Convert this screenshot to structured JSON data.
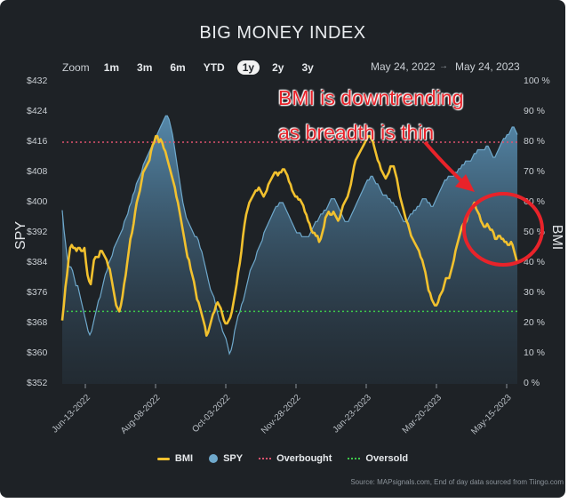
{
  "title": "BIG MONEY INDEX",
  "zoom": {
    "label": "Zoom",
    "buttons": [
      "1m",
      "3m",
      "6m",
      "YTD",
      "1y",
      "2y",
      "3y"
    ],
    "selected": "1y"
  },
  "date_range": {
    "from": "May 24, 2022",
    "to": "May 24, 2023"
  },
  "annotation": {
    "line1": "BMI is downtrending",
    "line2": "as breadth is thin",
    "color": "#e8232a"
  },
  "source": "Source: MAPsignals.com, End of day data sourced from Tiingo.com",
  "chart_data": {
    "type": "line",
    "title": "BIG MONEY INDEX",
    "y_left": {
      "label": "SPY",
      "ticks": [
        "$432",
        "$424",
        "$416",
        "$408",
        "$400",
        "$392",
        "$384",
        "$376",
        "$368",
        "$360",
        "$352"
      ],
      "range": [
        352,
        432
      ]
    },
    "y_right": {
      "label": "BMI",
      "ticks": [
        "100 %",
        "90 %",
        "80 %",
        "70 %",
        "60 %",
        "50 %",
        "40 %",
        "30 %",
        "20 %",
        "10 %",
        "0 %"
      ],
      "range": [
        0,
        100
      ]
    },
    "x_ticks": [
      "Jun-13-2022",
      "Aug-08-2022",
      "Oct-03-2022",
      "Nov-28-2022",
      "Jan-23-2023",
      "Mar-20-2023",
      "May-15-2023"
    ],
    "series": [
      {
        "name": "BMI",
        "axis": "right",
        "color": "#f2c12e",
        "values": [
          21,
          26,
          32,
          36,
          41,
          45,
          46,
          45,
          45,
          44,
          45,
          45,
          44,
          44,
          45,
          40,
          36,
          34,
          33,
          37,
          41,
          42,
          42,
          42,
          44,
          44,
          43,
          42,
          41,
          39,
          38,
          35,
          32,
          29,
          26,
          25,
          24,
          26,
          29,
          33,
          36,
          40,
          44,
          48,
          50,
          53,
          57,
          60,
          62,
          64,
          67,
          70,
          71,
          72,
          73,
          74,
          77,
          79,
          80,
          82,
          82,
          80,
          81,
          80,
          78,
          77,
          75,
          73,
          71,
          69,
          67,
          65,
          62,
          60,
          57,
          54,
          51,
          48,
          45,
          42,
          41,
          38,
          36,
          34,
          31,
          28,
          27,
          25,
          23,
          21,
          19,
          16,
          17,
          19,
          21,
          23,
          24,
          26,
          27,
          26,
          25,
          23,
          21,
          20,
          20,
          21,
          22,
          24,
          27,
          30,
          33,
          37,
          40,
          44,
          49,
          53,
          56,
          58,
          60,
          61,
          62,
          63,
          64,
          64,
          65,
          64,
          63,
          62,
          63,
          64,
          66,
          67,
          68,
          69,
          70,
          70,
          69,
          70,
          70,
          71,
          71,
          70,
          69,
          67,
          66,
          64,
          63,
          62,
          62,
          61,
          61,
          60,
          59,
          57,
          56,
          54,
          53,
          51,
          50,
          50,
          49,
          49,
          47,
          48,
          50,
          52,
          55,
          56,
          57,
          56,
          56,
          57,
          56,
          55,
          54,
          55,
          57,
          59,
          60,
          61,
          62,
          64,
          66,
          69,
          72,
          74,
          75,
          76,
          77,
          78,
          79,
          80,
          81,
          82,
          82,
          81,
          80,
          78,
          76,
          74,
          73,
          71,
          70,
          69,
          68,
          69,
          70,
          72,
          72,
          72,
          70,
          68,
          65,
          62,
          60,
          58,
          56,
          54,
          53,
          51,
          49,
          48,
          47,
          46,
          45,
          44,
          42,
          41,
          39,
          37,
          34,
          31,
          30,
          28,
          27,
          26,
          26,
          27,
          29,
          30,
          31,
          33,
          35,
          35,
          35,
          37,
          39,
          41,
          44,
          46,
          48,
          50,
          52,
          53,
          53,
          54,
          56,
          57,
          58,
          59,
          60,
          58,
          57,
          56,
          54,
          53,
          52,
          52,
          53,
          52,
          51,
          51,
          50,
          48,
          48,
          49,
          49,
          48,
          48,
          47,
          47,
          46,
          46,
          47,
          46,
          44,
          42,
          40
        ]
      },
      {
        "name": "SPY",
        "axis": "left",
        "color": "#6fa9cc",
        "values": [
          398,
          393,
          389,
          385,
          383,
          383,
          382,
          380,
          378,
          378,
          376,
          374,
          372,
          370,
          368,
          366,
          365,
          366,
          368,
          370,
          372,
          374,
          375,
          377,
          379,
          381,
          382,
          384,
          385,
          386,
          388,
          389,
          390,
          391,
          392,
          393,
          395,
          396,
          397,
          399,
          400,
          402,
          403,
          405,
          406,
          407,
          408,
          410,
          411,
          412,
          413,
          414,
          415,
          416,
          417,
          418,
          419,
          420,
          421,
          422,
          423,
          423,
          422,
          420,
          418,
          415,
          412,
          409,
          406,
          403,
          400,
          398,
          396,
          395,
          394,
          393,
          392,
          391,
          391,
          390,
          388,
          387,
          385,
          383,
          381,
          379,
          377,
          376,
          375,
          373,
          371,
          369,
          368,
          366,
          365,
          364,
          362,
          360,
          361,
          363,
          366,
          368,
          370,
          371,
          373,
          374,
          376,
          378,
          380,
          382,
          383,
          384,
          385,
          387,
          388,
          389,
          390,
          392,
          393,
          394,
          395,
          396,
          397,
          398,
          399,
          399,
          400,
          400,
          400,
          399,
          398,
          397,
          396,
          395,
          394,
          393,
          392,
          392,
          392,
          391,
          391,
          391,
          391,
          391,
          392,
          393,
          394,
          395,
          395,
          396,
          397,
          397,
          398,
          398,
          399,
          400,
          401,
          401,
          401,
          400,
          399,
          398,
          397,
          396,
          395,
          395,
          395,
          396,
          397,
          398,
          399,
          400,
          401,
          402,
          403,
          404,
          405,
          406,
          406,
          407,
          407,
          406,
          405,
          405,
          404,
          403,
          402,
          402,
          402,
          401,
          401,
          400,
          400,
          399,
          399,
          398,
          397,
          396,
          395,
          395,
          395,
          396,
          397,
          397,
          398,
          398,
          399,
          399,
          400,
          401,
          401,
          401,
          400,
          400,
          399,
          399,
          400,
          401,
          402,
          403,
          404,
          405,
          406,
          406,
          407,
          407,
          407,
          407,
          408,
          408,
          409,
          409,
          410,
          410,
          411,
          411,
          411,
          411,
          412,
          413,
          413,
          414,
          414,
          414,
          414,
          414,
          415,
          415,
          414,
          413,
          412,
          412,
          413,
          414,
          415,
          416,
          417,
          417,
          418,
          418,
          419,
          420,
          420,
          419,
          418
        ]
      }
    ],
    "reference_lines": [
      {
        "name": "Overbought",
        "value_pct": 80,
        "color": "#e0536f"
      },
      {
        "name": "Oversold",
        "value_pct": 24,
        "color": "#3ec94a"
      }
    ],
    "legend": [
      {
        "name": "BMI",
        "kind": "line",
        "color": "#f2c12e"
      },
      {
        "name": "SPY",
        "kind": "dot",
        "color": "#6fa9cc"
      },
      {
        "name": "Overbought",
        "kind": "dash",
        "color": "#e0536f"
      },
      {
        "name": "Oversold",
        "kind": "dash",
        "color": "#3ec94a"
      }
    ],
    "grid": false,
    "legend_position": "bottom"
  }
}
